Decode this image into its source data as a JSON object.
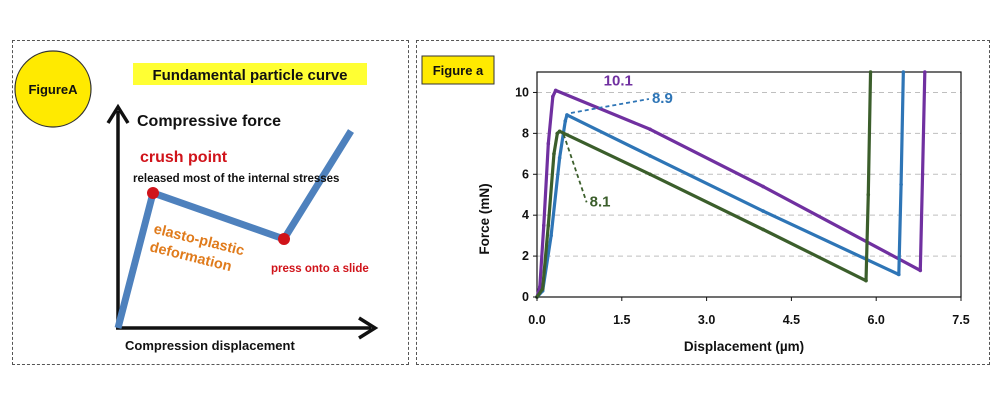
{
  "figure_a": {
    "badge": "FigureA",
    "title": "Fundamental particle curve",
    "ylabel": "Compressive force",
    "xlabel": "Compression displacement",
    "crush_label": "crush point",
    "crush_note": "released most of the internal stresses",
    "deform_line1": "elasto-plastic",
    "deform_line2": "deformation",
    "slide_note": "press onto a slide",
    "colors": {
      "curve": "#4e81bd",
      "points": "#d0131a",
      "crush": "#d0131a",
      "deform": "#e07b1c",
      "title_bg": "#ffff33",
      "badge_bg": "#ffea00"
    }
  },
  "figure_b": {
    "badge": "Figure a",
    "colors": {
      "badge_bg": "#ffea00"
    }
  },
  "chart_data": {
    "type": "line",
    "xlabel": "Displacement (µm)",
    "ylabel": "Force (mN)",
    "xlim": [
      0,
      7.5
    ],
    "ylim": [
      0,
      11
    ],
    "xticks": [
      "0.0",
      "1.5",
      "3.0",
      "4.5",
      "6.0",
      "7.5"
    ],
    "yticks": [
      "0",
      "2",
      "4",
      "6",
      "8",
      "10"
    ],
    "grid": "horizontal dashed",
    "series": [
      {
        "name": "10.1",
        "color": "#7030a0",
        "x": [
          0.0,
          0.05,
          0.12,
          0.2,
          0.28,
          0.33,
          2.0,
          4.0,
          6.78,
          6.82,
          6.86
        ],
        "y": [
          0.0,
          0.5,
          3.5,
          7.5,
          9.8,
          10.1,
          8.2,
          5.4,
          1.3,
          6.0,
          11.0
        ]
      },
      {
        "name": "8.9",
        "color": "#2e75b6",
        "x": [
          0.0,
          0.1,
          0.25,
          0.4,
          0.5,
          0.53,
          2.0,
          4.0,
          6.4,
          6.44,
          6.48
        ],
        "y": [
          0.0,
          0.3,
          3.0,
          6.8,
          8.6,
          8.9,
          6.9,
          4.2,
          1.1,
          5.5,
          11.0
        ]
      },
      {
        "name": "8.1",
        "color": "#3b5e2b",
        "x": [
          0.0,
          0.1,
          0.2,
          0.3,
          0.36,
          0.4,
          2.0,
          4.0,
          5.82,
          5.86,
          5.9
        ],
        "y": [
          0.0,
          0.4,
          3.5,
          7.0,
          8.0,
          8.1,
          6.0,
          3.3,
          0.8,
          5.0,
          11.0
        ]
      }
    ]
  }
}
